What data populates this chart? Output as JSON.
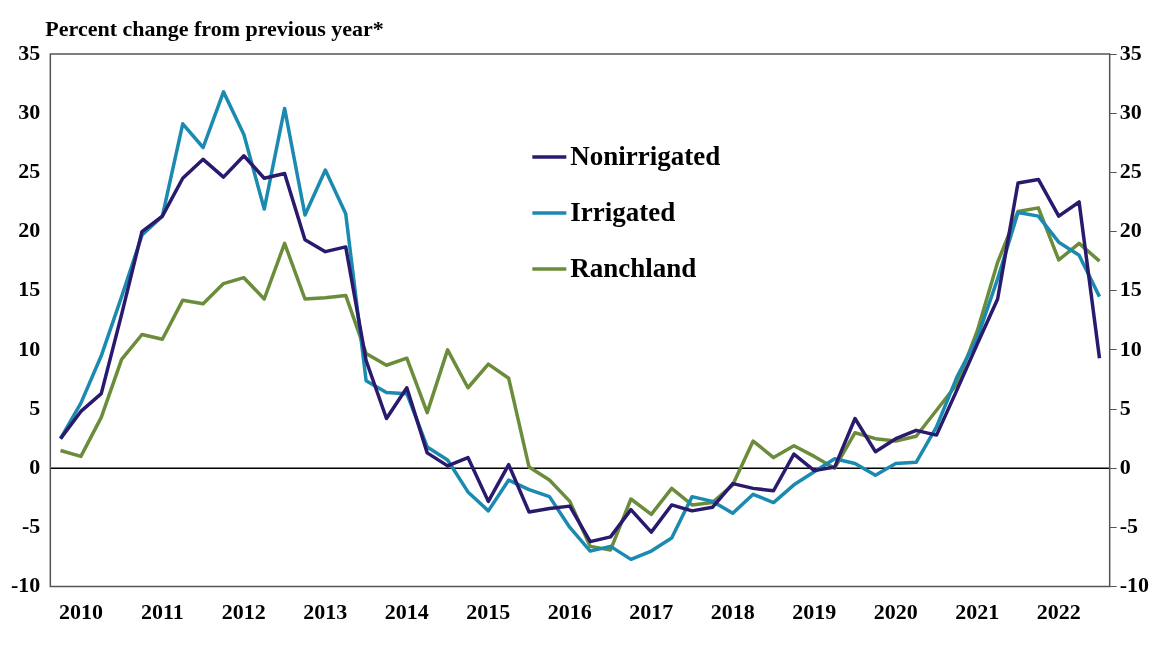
{
  "chart_data": {
    "type": "line",
    "title": "Percent change from previous year*",
    "categories": [
      null,
      "2010",
      null,
      null,
      null,
      "2011",
      null,
      null,
      null,
      "2012",
      null,
      null,
      null,
      "2013",
      null,
      null,
      null,
      "2014",
      null,
      null,
      null,
      "2015",
      null,
      null,
      null,
      "2016",
      null,
      null,
      null,
      "2017",
      null,
      null,
      null,
      "2018",
      null,
      null,
      null,
      "2019",
      null,
      null,
      null,
      "2020",
      null,
      null,
      null,
      "2021",
      null,
      null,
      null,
      "2022",
      null,
      null
    ],
    "series": [
      {
        "name": "Nonirrigated",
        "color": "#2a1a6e",
        "values": [
          2.5,
          4.8,
          6.3,
          13.0,
          20.0,
          21.3,
          24.5,
          26.1,
          24.6,
          26.4,
          24.5,
          24.9,
          19.3,
          18.3,
          18.7,
          9.1,
          4.2,
          6.8,
          1.3,
          0.2,
          0.9,
          -2.8,
          0.3,
          -3.7,
          -3.4,
          -3.2,
          -6.2,
          -5.8,
          -3.5,
          -5.4,
          -3.1,
          -3.6,
          -3.3,
          -1.3,
          -1.7,
          -1.9,
          1.2,
          -0.2,
          0.1,
          4.2,
          1.4,
          2.5,
          3.2,
          2.8,
          6.6,
          10.5,
          14.3,
          24.1,
          24.4,
          21.3,
          22.5,
          9.3
        ]
      },
      {
        "name": "Irrigated",
        "color": "#1a8ab0",
        "values": [
          2.5,
          5.5,
          9.5,
          14.5,
          19.7,
          21.3,
          29.1,
          27.1,
          31.8,
          28.2,
          21.9,
          30.4,
          21.4,
          25.2,
          21.5,
          7.4,
          6.4,
          6.3,
          1.8,
          0.7,
          -2.0,
          -3.6,
          -1.0,
          -1.8,
          -2.4,
          -5.0,
          -7.0,
          -6.6,
          -7.7,
          -7.0,
          -5.9,
          -2.4,
          -2.8,
          -3.8,
          -2.2,
          -2.9,
          -1.4,
          -0.3,
          0.8,
          0.4,
          -0.6,
          0.4,
          0.5,
          3.5,
          7.7,
          11.0,
          16.0,
          21.6,
          21.3,
          19.1,
          18.0,
          14.5
        ]
      },
      {
        "name": "Ranchland",
        "color": "#6b8c3a",
        "values": [
          1.5,
          1.0,
          4.3,
          9.2,
          11.3,
          10.9,
          14.2,
          13.9,
          15.6,
          16.1,
          14.3,
          19.0,
          14.3,
          14.4,
          14.6,
          9.7,
          8.7,
          9.3,
          4.7,
          10.0,
          6.8,
          8.8,
          7.6,
          0.1,
          -1.0,
          -2.8,
          -6.6,
          -6.9,
          -2.6,
          -3.9,
          -1.7,
          -3.1,
          -2.9,
          -1.4,
          2.3,
          0.9,
          1.9,
          1.0,
          0.0,
          3.0,
          2.5,
          2.3,
          2.7,
          4.9,
          7.1,
          11.6,
          17.4,
          21.7,
          22.0,
          17.6,
          19.0,
          17.5
        ]
      }
    ],
    "ylim": [
      -10,
      35
    ],
    "yticks": [
      -10,
      -5,
      0,
      5,
      10,
      15,
      20,
      25,
      30,
      35
    ],
    "y2lim": [
      -10,
      35
    ],
    "y2ticks": [
      -10,
      -5,
      0,
      5,
      10,
      15,
      20,
      25,
      30,
      35
    ],
    "ref_lines": [
      {
        "axis": "y",
        "value": 0,
        "color": "#000000"
      }
    ],
    "grid": false,
    "legend": "top",
    "marker": "none",
    "line_style": "solid"
  }
}
